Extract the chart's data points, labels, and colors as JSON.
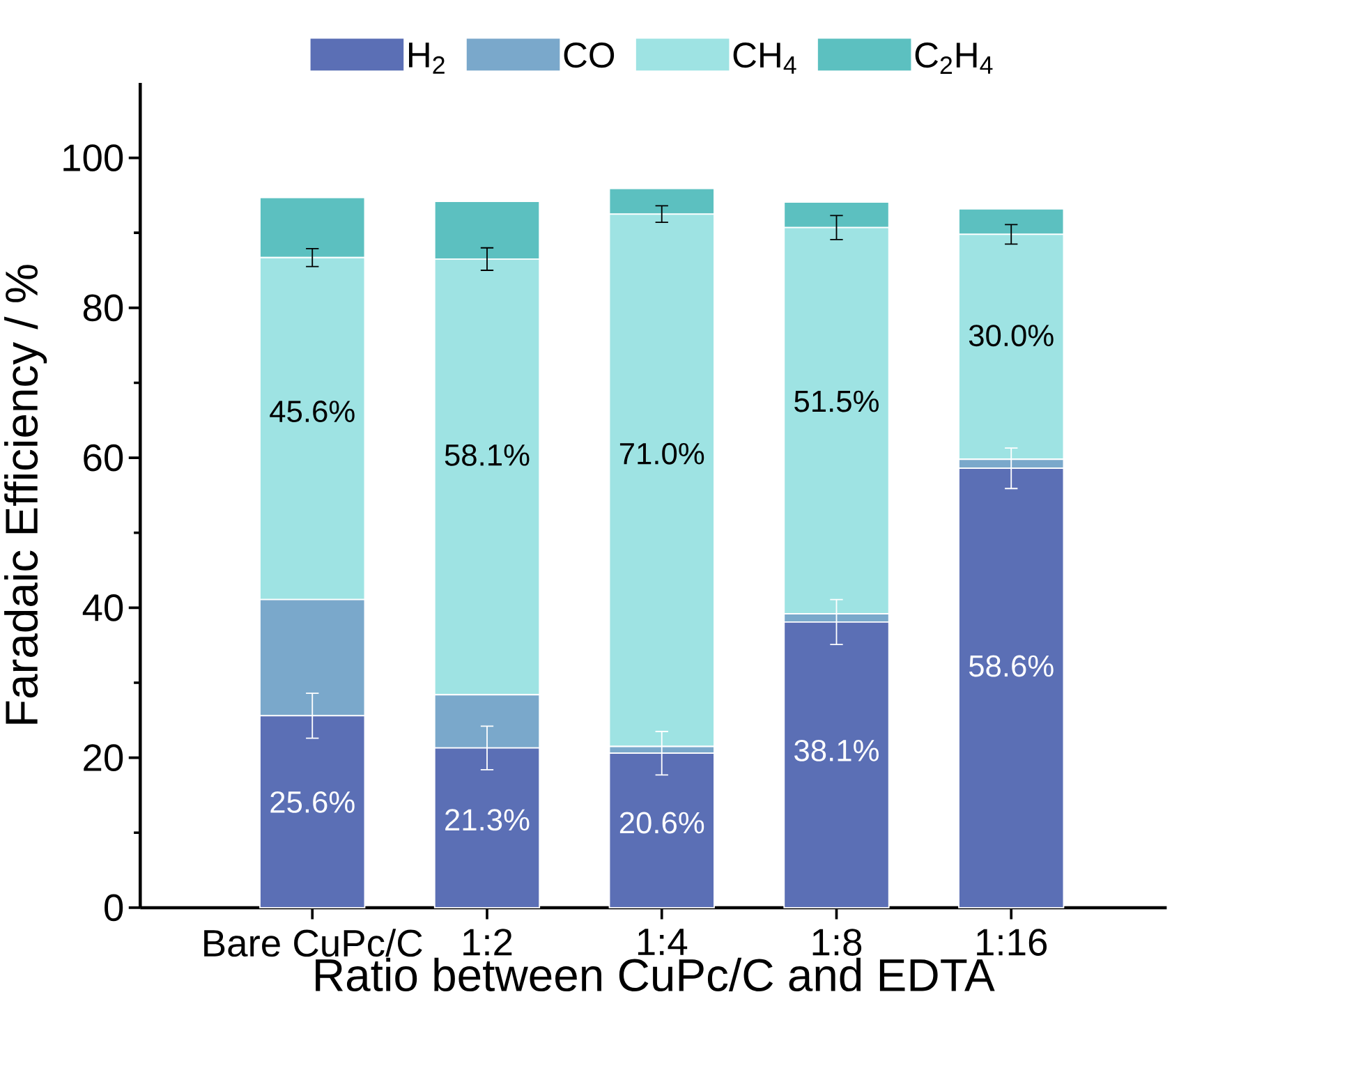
{
  "chart_data": {
    "type": "bar",
    "stacked": true,
    "xlabel": "Ratio between CuPc/C and EDTA",
    "ylabel": "Faradaic Efficiency / %",
    "categories": [
      "Bare CuPc/C",
      "1:2",
      "1:4",
      "1:8",
      "1:16"
    ],
    "ylim": [
      0,
      110
    ],
    "yticks": [
      0,
      20,
      40,
      60,
      80,
      100
    ],
    "legend": "top",
    "series": [
      {
        "name": "H$_{2}$",
        "color": "#5b6fb5",
        "values": [
          25.6,
          21.3,
          20.6,
          38.1,
          58.6
        ],
        "errors": [
          3.0,
          2.9,
          2.9,
          3.0,
          2.7
        ],
        "value_labels": [
          "25.6%",
          "21.3%",
          "20.6%",
          "38.1%",
          "58.6%"
        ]
      },
      {
        "name": "CO",
        "color": "#7aa8cb",
        "values": [
          15.5,
          7.1,
          0.9,
          1.1,
          1.2
        ]
      },
      {
        "name": "CH$_{4}$",
        "color": "#9ee3e3",
        "values": [
          45.6,
          58.1,
          71.0,
          51.5,
          30.0
        ],
        "errors": [
          1.2,
          1.5,
          1.1,
          1.6,
          1.3
        ],
        "value_labels": [
          "45.6%",
          "58.1%",
          "71.0%",
          "51.5%",
          "30.0%"
        ]
      },
      {
        "name": "C$_{2}$H$_{4}$",
        "color": "#5cc0c0",
        "values": [
          8.0,
          7.7,
          3.4,
          3.4,
          3.4
        ]
      }
    ]
  }
}
